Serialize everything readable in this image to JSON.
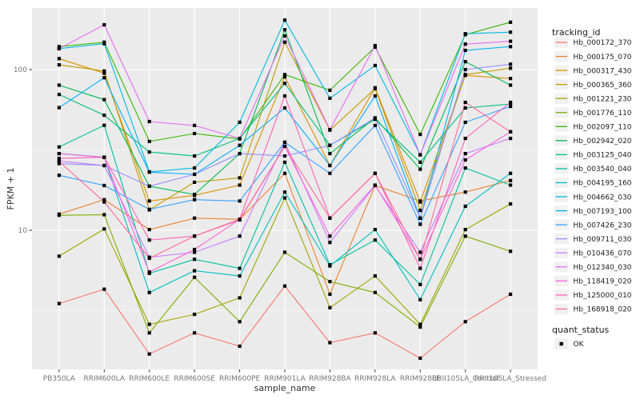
{
  "chart_data": {
    "type": "line",
    "title": "",
    "xlabel": "sample_name",
    "ylabel": "FPKM + 1",
    "y_scale": "log10",
    "y_ticks": [
      10,
      100
    ],
    "y_minor_ticks": [
      3.162,
      31.62
    ],
    "ylim": [
      1.36,
      241
    ],
    "grid": "white major+minor on gray panel",
    "panel_bg": "#EBEBEB",
    "gridline_color": "#FFFFFF",
    "point_shape": "small black square",
    "point_color": "#000000",
    "categories": [
      "PB350LA",
      "RRIM600LA",
      "RRIM600LE",
      "RRIM600SE",
      "RRIM600PE",
      "RRIM901LA",
      "RRIM928BA",
      "RRIM928LA",
      "RRIM928LE",
      "RRII105LA_Control",
      "RRII105LA_Stressed"
    ],
    "series": [
      {
        "name": "Hb_000172_370",
        "color": "#F8766D",
        "values": [
          3.5,
          4.3,
          1.7,
          2.3,
          1.9,
          4.5,
          2.0,
          2.3,
          1.6,
          2.7,
          4.0
        ]
      },
      {
        "name": "Hb_000175_070",
        "color": "#EA8331",
        "values": [
          12.6,
          15.5,
          10.1,
          11.9,
          11.7,
          22.6,
          4.0,
          19.0,
          15.2,
          17.3,
          20.4
        ]
      },
      {
        "name": "Hb_000317_430",
        "color": "#D89000",
        "values": [
          117,
          95,
          15.2,
          16.5,
          19.1,
          90,
          25.3,
          77,
          15.0,
          92,
          88
        ]
      },
      {
        "name": "Hb_000365_360",
        "color": "#C09B00",
        "values": [
          107,
          98,
          13.4,
          19.9,
          21.2,
          148,
          42.0,
          76,
          13.3,
          93,
          102
        ]
      },
      {
        "name": "Hb_001221_230",
        "color": "#A3A500",
        "values": [
          6.9,
          10.2,
          2.6,
          3.0,
          3.8,
          15.9,
          3.3,
          5.2,
          2.6,
          10.1,
          14.6
        ]
      },
      {
        "name": "Hb_001776_110",
        "color": "#7CAE00",
        "values": [
          12.4,
          12.5,
          2.3,
          5.1,
          2.7,
          7.3,
          4.8,
          4.1,
          2.5,
          9.2,
          7.4
        ]
      },
      {
        "name": "Hb_002097_110",
        "color": "#39B600",
        "values": [
          139,
          148,
          35.7,
          40.0,
          37.0,
          93,
          74.3,
          138,
          39.5,
          165,
          197
        ]
      },
      {
        "name": "Hb_002942_020",
        "color": "#00BB4E",
        "values": [
          80,
          65,
          18.8,
          16.7,
          30.0,
          177,
          30.0,
          50,
          24.0,
          112,
          80
        ]
      },
      {
        "name": "Hb_003125_040",
        "color": "#00BF7D",
        "values": [
          70,
          52,
          30.7,
          29.0,
          37.3,
          82,
          33.8,
          49,
          26.5,
          57.7,
          61
        ]
      },
      {
        "name": "Hb_003540_040",
        "color": "#00C1A3",
        "values": [
          33,
          45,
          5.4,
          6.6,
          5.8,
          26.5,
          6.1,
          8.7,
          4.6,
          24.4,
          19.1
        ]
      },
      {
        "name": "Hb_004195_160",
        "color": "#00BFC4",
        "values": [
          30,
          28.5,
          4.1,
          5.6,
          5.2,
          17.3,
          6.0,
          10.1,
          3.7,
          14.1,
          22.6
        ]
      },
      {
        "name": "Hb_004662_030",
        "color": "#00BAE0",
        "values": [
          135,
          145,
          23.1,
          24.4,
          47.0,
          203,
          66.3,
          106,
          29.5,
          167,
          171
        ]
      },
      {
        "name": "Hb_007193_100",
        "color": "#00B0F6",
        "values": [
          58,
          89,
          23.0,
          22.3,
          33.8,
          57.7,
          25.3,
          68.5,
          11.9,
          131.6,
          139
        ]
      },
      {
        "name": "Hb_007426_230",
        "color": "#35A2FF",
        "values": [
          22,
          19,
          13.5,
          15.5,
          15.2,
          35.3,
          22.6,
          44.9,
          10.9,
          47.0,
          59
        ]
      },
      {
        "name": "Hb_009711_030",
        "color": "#9590FF",
        "values": [
          26,
          25.3,
          18.8,
          22.3,
          30.0,
          29.0,
          33.8,
          50.0,
          11.9,
          100,
          108
        ]
      },
      {
        "name": "Hb_010436_070",
        "color": "#C77CFF",
        "values": [
          27,
          25.3,
          6.8,
          7.3,
          9.2,
          35.3,
          8.4,
          19.0,
          7.3,
          30.0,
          37.3
        ]
      },
      {
        "name": "Hb_012340_030",
        "color": "#E76BF3",
        "values": [
          135,
          190,
          47.5,
          44.9,
          37.3,
          162,
          42.3,
          141,
          29.5,
          144,
          150
        ]
      },
      {
        "name": "Hb_118419_020",
        "color": "#FA62DB",
        "values": [
          30,
          28.4,
          5.5,
          7.6,
          11.7,
          33.3,
          9.2,
          19.1,
          6.6,
          27.4,
          41
        ]
      },
      {
        "name": "Hb_125000_010",
        "color": "#FF62BC",
        "values": [
          28,
          28.5,
          8.7,
          9.2,
          11.7,
          68.5,
          11.9,
          22.6,
          5.8,
          37.3,
          62.5
        ]
      },
      {
        "name": "Hb_168918_020",
        "color": "#FF6A98",
        "values": [
          26.8,
          15.0,
          6.7,
          9.2,
          11.6,
          33.3,
          11.9,
          22.6,
          6.6,
          62.5,
          41.0
        ]
      }
    ],
    "legend": {
      "title": "tracking_id",
      "position": "right"
    },
    "legend2": {
      "title": "quant_status",
      "items": [
        {
          "label": "OK",
          "symbol": "black-square"
        }
      ]
    },
    "y_tick_labels": [
      "100",
      "10"
    ]
  }
}
